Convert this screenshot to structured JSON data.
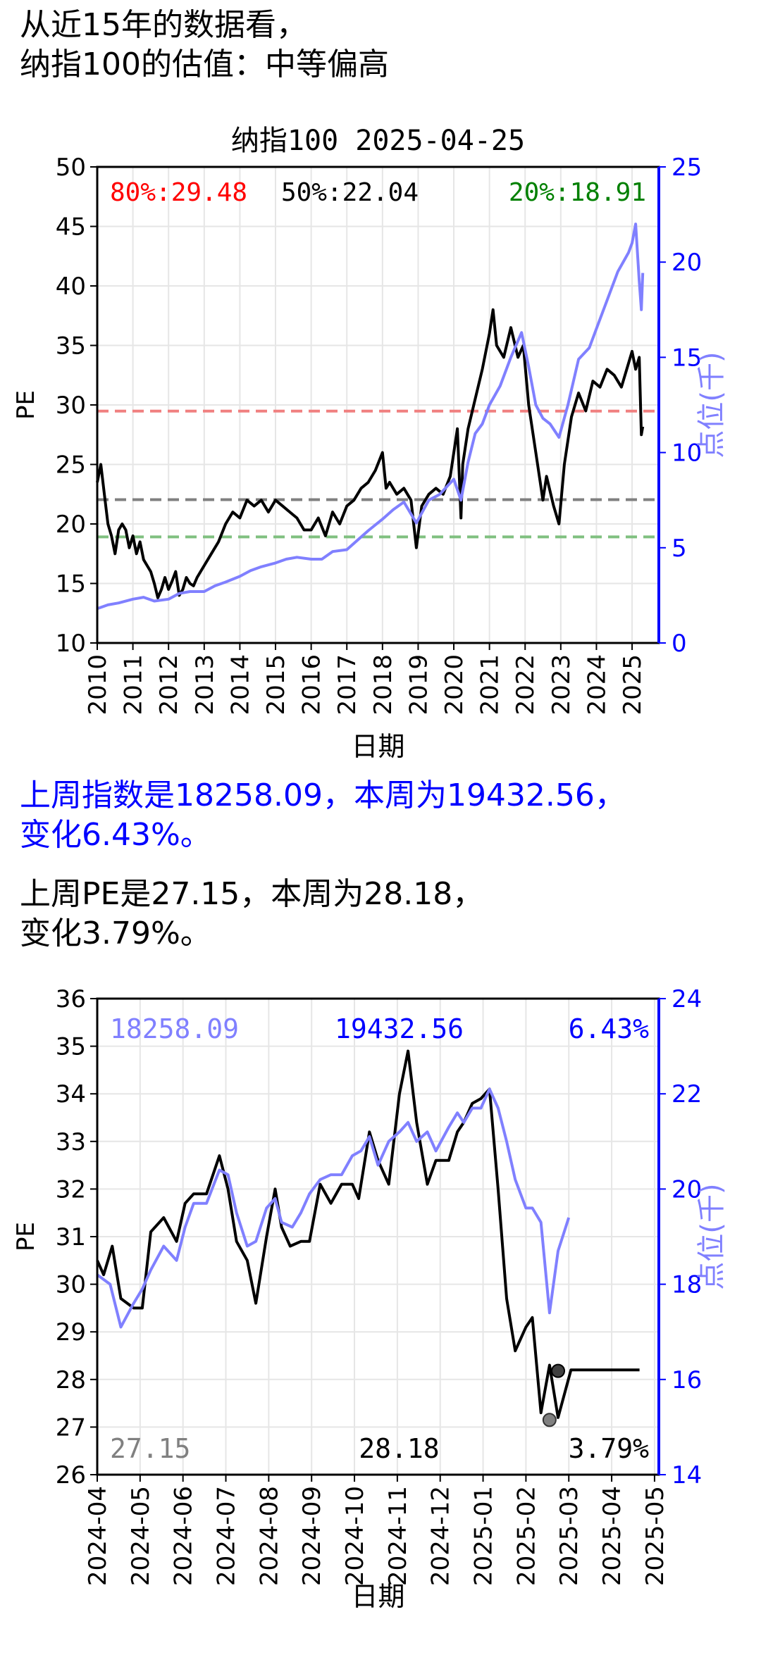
{
  "header": {
    "line1": "从近15年的数据看，",
    "line2": "纳指100的估值：中等偏高"
  },
  "summary": {
    "index_line1": "上周指数是18258.09，本周为19432.56，",
    "index_line2": "变化6.43%。",
    "pe_line1": "上周PE是27.15，本周为28.18，",
    "pe_line2": "变化3.79%。"
  },
  "colors": {
    "pe": "#000000",
    "index": "#8080ff",
    "right_axis": "#0000ff",
    "p80": "#ff0000",
    "p50": "#000000",
    "p20": "#008000",
    "line80": "#f08080",
    "line50": "#808080",
    "line20": "#80c080"
  },
  "chart_data": [
    {
      "type": "line",
      "title": "纳指100 2025-04-25",
      "xlabel": "日期",
      "ylabel": "PE",
      "y2label": "点位(千)",
      "xlim": [
        2010.0,
        2025.75
      ],
      "ylim": [
        10,
        50
      ],
      "y2lim": [
        0,
        25
      ],
      "yticks": [
        10,
        15,
        20,
        25,
        30,
        35,
        40,
        45,
        50
      ],
      "y2ticks": [
        0,
        5,
        10,
        15,
        20,
        25
      ],
      "xticks": [
        "2010",
        "2011",
        "2012",
        "2013",
        "2014",
        "2015",
        "2016",
        "2017",
        "2018",
        "2019",
        "2020",
        "2021",
        "2022",
        "2023",
        "2024",
        "2025"
      ],
      "grid": true,
      "annotations": {
        "p80": "80%:29.48",
        "p50": "50%:22.04",
        "p20": "20%:18.91"
      },
      "hlines": [
        29.48,
        22.04,
        18.91
      ],
      "series": [
        {
          "axis": "left",
          "x": [
            2010.0,
            2010.1,
            2010.2,
            2010.3,
            2010.4,
            2010.5,
            2010.6,
            2010.7,
            2010.8,
            2010.9,
            2011.0,
            2011.1,
            2011.2,
            2011.3,
            2011.4,
            2011.5,
            2011.6,
            2011.7,
            2011.8,
            2011.9,
            2012.0,
            2012.1,
            2012.2,
            2012.3,
            2012.4,
            2012.5,
            2012.6,
            2012.7,
            2012.8,
            2012.9,
            2013.0,
            2013.2,
            2013.4,
            2013.6,
            2013.8,
            2014.0,
            2014.2,
            2014.4,
            2014.6,
            2014.8,
            2015.0,
            2015.2,
            2015.4,
            2015.6,
            2015.8,
            2016.0,
            2016.2,
            2016.4,
            2016.6,
            2016.8,
            2017.0,
            2017.2,
            2017.4,
            2017.6,
            2017.8,
            2018.0,
            2018.1,
            2018.2,
            2018.4,
            2018.6,
            2018.8,
            2018.95,
            2019.1,
            2019.3,
            2019.5,
            2019.7,
            2019.9,
            2020.1,
            2020.2,
            2020.25,
            2020.4,
            2020.6,
            2020.8,
            2021.0,
            2021.1,
            2021.2,
            2021.4,
            2021.6,
            2021.8,
            2021.95,
            2022.1,
            2022.3,
            2022.5,
            2022.6,
            2022.8,
            2022.95,
            2023.1,
            2023.3,
            2023.5,
            2023.7,
            2023.9,
            2024.1,
            2024.3,
            2024.5,
            2024.7,
            2024.9,
            2025.0,
            2025.1,
            2025.2,
            2025.26,
            2025.3
          ],
          "values": [
            23.5,
            25.0,
            22.5,
            20.0,
            19.0,
            17.5,
            19.5,
            20.0,
            19.5,
            18.0,
            19.0,
            17.5,
            18.5,
            17.0,
            16.5,
            16.0,
            15.0,
            13.8,
            14.5,
            15.5,
            14.5,
            15.2,
            16.0,
            14.0,
            14.5,
            15.5,
            15.0,
            14.8,
            15.5,
            16.0,
            16.5,
            17.5,
            18.5,
            20.0,
            21.0,
            20.5,
            22.0,
            21.5,
            22.0,
            21.0,
            22.0,
            21.5,
            21.0,
            20.5,
            19.5,
            19.5,
            20.5,
            19.0,
            21.0,
            20.0,
            21.5,
            22.0,
            23.0,
            23.5,
            24.5,
            26.0,
            23.0,
            23.5,
            22.5,
            23.0,
            22.0,
            18.0,
            21.5,
            22.5,
            23.0,
            22.5,
            24.0,
            28.0,
            20.5,
            25.0,
            28.0,
            30.5,
            33.0,
            36.0,
            38.0,
            35.0,
            34.0,
            36.5,
            34.0,
            35.0,
            30.0,
            26.0,
            22.0,
            24.0,
            21.5,
            20.0,
            25.0,
            29.0,
            31.0,
            29.5,
            32.0,
            31.5,
            33.0,
            32.5,
            31.5,
            33.5,
            34.5,
            33.0,
            34.0,
            27.5,
            28.18
          ]
        },
        {
          "axis": "right",
          "x": [
            2010.0,
            2010.3,
            2010.6,
            2011.0,
            2011.3,
            2011.6,
            2012.0,
            2012.3,
            2012.6,
            2013.0,
            2013.3,
            2013.6,
            2014.0,
            2014.3,
            2014.6,
            2015.0,
            2015.3,
            2015.6,
            2016.0,
            2016.3,
            2016.6,
            2017.0,
            2017.3,
            2017.6,
            2018.0,
            2018.3,
            2018.6,
            2018.95,
            2019.3,
            2019.6,
            2020.0,
            2020.2,
            2020.4,
            2020.6,
            2020.8,
            2021.0,
            2021.3,
            2021.6,
            2021.9,
            2022.1,
            2022.3,
            2022.5,
            2022.7,
            2022.95,
            2023.2,
            2023.5,
            2023.8,
            2024.0,
            2024.3,
            2024.6,
            2024.9,
            2025.0,
            2025.1,
            2025.2,
            2025.26,
            2025.3
          ],
          "values": [
            1.8,
            2.0,
            2.1,
            2.3,
            2.4,
            2.2,
            2.3,
            2.6,
            2.7,
            2.7,
            3.0,
            3.2,
            3.5,
            3.8,
            4.0,
            4.2,
            4.4,
            4.5,
            4.4,
            4.4,
            4.8,
            4.9,
            5.4,
            5.9,
            6.5,
            7.0,
            7.4,
            6.3,
            7.5,
            7.8,
            8.6,
            7.5,
            9.5,
            11.0,
            11.5,
            12.5,
            13.5,
            15.0,
            16.3,
            14.5,
            12.5,
            11.8,
            11.5,
            10.8,
            12.5,
            14.9,
            15.5,
            16.5,
            18.0,
            19.5,
            20.5,
            21.0,
            22.0,
            19.0,
            17.5,
            19.43
          ]
        }
      ]
    },
    {
      "type": "line",
      "xlabel": "日期",
      "ylabel": "PE",
      "y2label": "点位(千)",
      "xlim": [
        0,
        13.1
      ],
      "ylim": [
        26,
        36
      ],
      "y2lim": [
        14,
        24
      ],
      "yticks": [
        26,
        27,
        28,
        29,
        30,
        31,
        32,
        33,
        34,
        35,
        36
      ],
      "y2ticks": [
        14,
        16,
        18,
        20,
        22,
        24
      ],
      "xticks": [
        "2024-04",
        "2024-05",
        "2024-06",
        "2024-07",
        "2024-08",
        "2024-09",
        "2024-10",
        "2024-11",
        "2024-12",
        "2025-01",
        "2025-02",
        "2025-03",
        "2025-04",
        "2025-05"
      ],
      "grid": true,
      "annotations": {
        "index_prev": "18258.09",
        "index_curr": "19432.56",
        "index_change": "6.43%",
        "pe_prev": "27.15",
        "pe_curr": "28.18",
        "pe_change": "3.79%"
      },
      "series": [
        {
          "axis": "left",
          "x": [
            0.0,
            0.15,
            0.35,
            0.55,
            0.85,
            1.05,
            1.25,
            1.55,
            1.85,
            2.05,
            2.25,
            2.55,
            2.85,
            3.05,
            3.25,
            3.5,
            3.7,
            3.95,
            4.15,
            4.3,
            4.5,
            4.75,
            4.95,
            5.2,
            5.45,
            5.7,
            5.95,
            6.1,
            6.35,
            6.55,
            6.8,
            7.05,
            7.25,
            7.45,
            7.7,
            7.9,
            8.2,
            8.4,
            8.55,
            8.75,
            8.95,
            9.15,
            9.35,
            9.55,
            9.75,
            10.0,
            10.15,
            10.35,
            10.55,
            10.75,
            11.05,
            11.25,
            11.45,
            11.65,
            11.85,
            12.05,
            12.25,
            12.45,
            12.65
          ],
          "values": [
            30.5,
            30.2,
            30.8,
            29.7,
            29.5,
            29.5,
            31.1,
            31.4,
            30.9,
            31.7,
            31.9,
            31.9,
            32.7,
            32.0,
            30.9,
            30.5,
            29.6,
            31.0,
            32.0,
            31.2,
            30.8,
            30.9,
            30.9,
            32.1,
            31.7,
            32.1,
            32.1,
            31.8,
            33.2,
            32.6,
            32.1,
            34.0,
            34.9,
            33.4,
            32.1,
            32.6,
            32.6,
            33.2,
            33.4,
            33.8,
            33.9,
            34.1,
            32.0,
            29.7,
            28.6,
            29.1,
            29.3,
            27.3,
            28.3,
            27.2,
            28.2,
            28.2,
            28.2,
            28.2,
            28.2,
            28.2,
            28.2,
            28.2,
            28.2
          ]
        },
        {
          "axis": "right",
          "x": [
            0.0,
            0.3,
            0.55,
            0.85,
            1.05,
            1.25,
            1.55,
            1.85,
            2.05,
            2.25,
            2.55,
            2.85,
            3.05,
            3.25,
            3.5,
            3.7,
            3.95,
            4.15,
            4.3,
            4.55,
            4.75,
            4.95,
            5.2,
            5.45,
            5.7,
            5.95,
            6.15,
            6.35,
            6.55,
            6.8,
            7.05,
            7.25,
            7.45,
            7.7,
            7.9,
            8.2,
            8.4,
            8.55,
            8.75,
            8.95,
            9.15,
            9.35,
            9.55,
            9.75,
            10.0,
            10.15,
            10.35,
            10.55,
            10.75,
            11.0
          ],
          "values": [
            18.2,
            18.0,
            17.1,
            17.6,
            17.9,
            18.3,
            18.8,
            18.5,
            19.2,
            19.7,
            19.7,
            20.4,
            20.3,
            19.5,
            18.8,
            18.9,
            19.6,
            19.8,
            19.3,
            19.2,
            19.5,
            19.9,
            20.2,
            20.3,
            20.3,
            20.7,
            20.8,
            21.1,
            20.5,
            21.0,
            21.2,
            21.4,
            21.0,
            21.2,
            20.8,
            21.3,
            21.6,
            21.4,
            21.7,
            21.7,
            22.1,
            21.7,
            21.0,
            20.2,
            19.6,
            19.6,
            19.3,
            17.4,
            18.7,
            19.4
          ]
        }
      ]
    }
  ]
}
